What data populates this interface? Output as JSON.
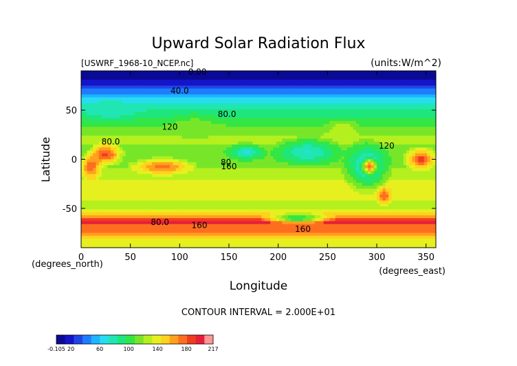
{
  "chart_data": {
    "type": "heatmap",
    "title": "Upward Solar Radiation Flux",
    "file_label": "[USWRF_1968-10_NCEP.nc]",
    "units_label": "(units:W/m^2)",
    "xlabel": "Longitude",
    "ylabel": "Latitude",
    "x_unit_label": "(degrees_east)",
    "y_unit_label": "(degrees_north)",
    "xlim": [
      0,
      360
    ],
    "ylim": [
      -90,
      90
    ],
    "x_ticks": [
      0,
      50,
      100,
      150,
      200,
      250,
      300,
      350
    ],
    "y_ticks": [
      50,
      0,
      -50
    ],
    "contour_interval_label": "CONTOUR INTERVAL = 2.000E+01",
    "contour_labels": [
      {
        "text": "0.00",
        "lon": 118,
        "lat": 86
      },
      {
        "text": "40.0",
        "lon": 100,
        "lat": 67
      },
      {
        "text": "80.0",
        "lon": 148,
        "lat": 43
      },
      {
        "text": "80.0",
        "lon": 30,
        "lat": 15
      },
      {
        "text": "120",
        "lon": 90,
        "lat": 30
      },
      {
        "text": "120",
        "lon": 310,
        "lat": 11
      },
      {
        "text": "80",
        "lon": 147,
        "lat": -6
      },
      {
        "text": "160",
        "lon": 150,
        "lat": -10
      },
      {
        "text": "160",
        "lon": 120,
        "lat": -70
      },
      {
        "text": "80.0",
        "lon": 80,
        "lat": -67
      },
      {
        "text": "160",
        "lon": 225,
        "lat": -74
      }
    ],
    "colorbar": {
      "min": -0.105,
      "max": 217,
      "tick_labels": [
        "-0.105",
        "20",
        "60",
        "100",
        "140",
        "180",
        "217"
      ],
      "tick_values": [
        -0.105,
        20,
        60,
        100,
        140,
        180,
        217
      ],
      "colors": [
        "#0a0a96",
        "#1414c8",
        "#1e46e6",
        "#1e7dff",
        "#1eb4ff",
        "#28dcf0",
        "#20e6b4",
        "#1ee67d",
        "#32e646",
        "#78e628",
        "#b4f01e",
        "#e6f01e",
        "#ffd21e",
        "#ffa01e",
        "#ff6e1e",
        "#f03c1e",
        "#e61e3c",
        "#ff9696"
      ]
    },
    "zonal_profile": [
      {
        "lat": 90,
        "value": 5
      },
      {
        "lat": 82,
        "value": 10
      },
      {
        "lat": 76,
        "value": 22
      },
      {
        "lat": 70,
        "value": 40
      },
      {
        "lat": 64,
        "value": 58
      },
      {
        "lat": 58,
        "value": 72
      },
      {
        "lat": 52,
        "value": 82
      },
      {
        "lat": 46,
        "value": 92
      },
      {
        "lat": 40,
        "value": 100
      },
      {
        "lat": 34,
        "value": 108
      },
      {
        "lat": 28,
        "value": 116
      },
      {
        "lat": 22,
        "value": 124
      },
      {
        "lat": 16,
        "value": 122
      },
      {
        "lat": 10,
        "value": 116
      },
      {
        "lat": 4,
        "value": 112
      },
      {
        "lat": -2,
        "value": 114
      },
      {
        "lat": -8,
        "value": 120
      },
      {
        "lat": -14,
        "value": 126
      },
      {
        "lat": -20,
        "value": 132
      },
      {
        "lat": -26,
        "value": 138
      },
      {
        "lat": -32,
        "value": 140
      },
      {
        "lat": -38,
        "value": 136
      },
      {
        "lat": -44,
        "value": 130
      },
      {
        "lat": -50,
        "value": 128
      },
      {
        "lat": -56,
        "value": 150
      },
      {
        "lat": -60,
        "value": 175
      },
      {
        "lat": -63,
        "value": 200
      },
      {
        "lat": -66,
        "value": 190
      },
      {
        "lat": -69,
        "value": 168
      },
      {
        "lat": -72,
        "value": 182
      },
      {
        "lat": -75,
        "value": 165
      },
      {
        "lat": -79,
        "value": 148
      },
      {
        "lat": -84,
        "value": 140
      },
      {
        "lat": -90,
        "value": 135
      }
    ],
    "regional_features": [
      {
        "lon": [
          0,
          20
        ],
        "lat": [
          -20,
          5
        ],
        "value": 178
      },
      {
        "lon": [
          10,
          40
        ],
        "lat": [
          -5,
          15
        ],
        "value": 185
      },
      {
        "lon": [
          55,
          110
        ],
        "lat": [
          -15,
          0
        ],
        "value": 175
      },
      {
        "lon": [
          150,
          185
        ],
        "lat": [
          0,
          15
        ],
        "value": 70
      },
      {
        "lon": [
          200,
          260
        ],
        "lat": [
          -5,
          20
        ],
        "value": 72
      },
      {
        "lon": [
          270,
          310
        ],
        "lat": [
          -30,
          15
        ],
        "value": 68
      },
      {
        "lon": [
          285,
          300
        ],
        "lat": [
          -15,
          0
        ],
        "value": 178
      },
      {
        "lon": [
          300,
          315
        ],
        "lat": [
          -45,
          -30
        ],
        "value": 178
      },
      {
        "lon": [
          90,
          140
        ],
        "lat": [
          20,
          45
        ],
        "value": 115
      },
      {
        "lon": [
          0,
          60
        ],
        "lat": [
          40,
          60
        ],
        "value": 75
      },
      {
        "lon": [
          190,
          250
        ],
        "lat": [
          -65,
          -55
        ],
        "value": 95
      },
      {
        "lon": [
          330,
          360
        ],
        "lat": [
          -10,
          10
        ],
        "value": 185
      },
      {
        "lon": [
          250,
          280
        ],
        "lat": [
          20,
          40
        ],
        "value": 130
      }
    ]
  }
}
